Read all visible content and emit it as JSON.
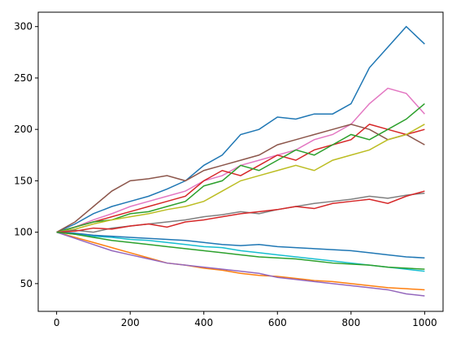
{
  "chart_data": {
    "type": "line",
    "x": [
      0,
      50,
      100,
      150,
      200,
      250,
      300,
      350,
      400,
      450,
      500,
      550,
      600,
      650,
      700,
      750,
      800,
      850,
      900,
      950,
      1000
    ],
    "xlim": [
      -50,
      1050
    ],
    "xticks": [
      0,
      200,
      400,
      600,
      800,
      1000
    ],
    "ylim": [
      23,
      314
    ],
    "yticks": [
      50,
      100,
      150,
      200,
      250,
      300
    ],
    "series": [
      {
        "color": "#1f77b4",
        "values": [
          100,
          108,
          118,
          125,
          130,
          135,
          142,
          150,
          165,
          175,
          195,
          200,
          212,
          210,
          215,
          215,
          225,
          260,
          280,
          300,
          283
        ]
      },
      {
        "color": "#e377c2",
        "values": [
          100,
          105,
          112,
          118,
          125,
          130,
          135,
          140,
          150,
          155,
          165,
          170,
          175,
          180,
          190,
          195,
          205,
          225,
          240,
          235,
          215
        ]
      },
      {
        "color": "#8c564b",
        "values": [
          100,
          110,
          125,
          140,
          150,
          152,
          155,
          150,
          160,
          165,
          170,
          175,
          185,
          190,
          195,
          200,
          205,
          200,
          190,
          195,
          185
        ]
      },
      {
        "color": "#d62728",
        "values": [
          100,
          105,
          110,
          115,
          120,
          125,
          130,
          135,
          150,
          160,
          155,
          165,
          175,
          170,
          180,
          185,
          190,
          205,
          200,
          195,
          200
        ]
      },
      {
        "color": "#2ca02c",
        "values": [
          100,
          105,
          110,
          112,
          118,
          120,
          125,
          130,
          145,
          150,
          165,
          160,
          170,
          180,
          175,
          185,
          195,
          190,
          200,
          210,
          225
        ]
      },
      {
        "color": "#bcbd22",
        "values": [
          100,
          103,
          108,
          112,
          115,
          118,
          122,
          125,
          130,
          140,
          150,
          155,
          160,
          165,
          160,
          170,
          175,
          180,
          190,
          195,
          205
        ]
      },
      {
        "color": "#ff7f0e",
        "values": [
          100,
          95,
          90,
          85,
          80,
          75,
          70,
          68,
          65,
          63,
          60,
          58,
          57,
          55,
          53,
          52,
          50,
          48,
          46,
          45,
          44
        ]
      },
      {
        "color": "#9467bd",
        "values": [
          100,
          94,
          88,
          82,
          78,
          74,
          70,
          68,
          66,
          64,
          62,
          60,
          56,
          54,
          52,
          50,
          48,
          46,
          44,
          40,
          38
        ]
      },
      {
        "color": "#17becf",
        "values": [
          100,
          98,
          96,
          95,
          93,
          92,
          90,
          88,
          86,
          85,
          82,
          80,
          78,
          76,
          74,
          72,
          70,
          68,
          66,
          64,
          62
        ]
      },
      {
        "color": "#7f7f7f",
        "values": [
          100,
          102,
          100,
          104,
          106,
          108,
          110,
          112,
          115,
          117,
          120,
          118,
          122,
          125,
          128,
          130,
          132,
          135,
          133,
          136,
          138
        ]
      },
      {
        "color": "#1f77b4",
        "values": [
          100,
          99,
          97,
          96,
          95,
          94,
          93,
          92,
          90,
          88,
          87,
          88,
          86,
          85,
          84,
          83,
          82,
          80,
          78,
          76,
          75
        ]
      },
      {
        "color": "#d62728",
        "values": [
          100,
          101,
          104,
          103,
          106,
          108,
          105,
          110,
          112,
          115,
          118,
          120,
          122,
          125,
          123,
          128,
          130,
          132,
          128,
          135,
          140
        ]
      },
      {
        "color": "#2ca02c",
        "values": [
          100,
          98,
          95,
          92,
          90,
          88,
          86,
          84,
          82,
          80,
          78,
          76,
          75,
          74,
          72,
          70,
          69,
          68,
          66,
          65,
          64
        ]
      }
    ]
  }
}
